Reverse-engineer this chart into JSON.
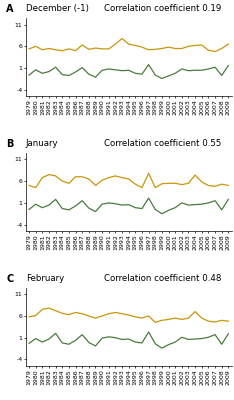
{
  "years_A": [
    1979,
    1980,
    1981,
    1982,
    1983,
    1984,
    1985,
    1986,
    1987,
    1988,
    1989,
    1990,
    1991,
    1992,
    1993,
    1994,
    1995,
    1996,
    1997,
    1998,
    1999,
    2000,
    2001,
    2002,
    2003,
    2004,
    2005,
    2006,
    2007,
    2008,
    2009
  ],
  "years_B": [
    1979,
    1980,
    1981,
    1982,
    1983,
    1984,
    1985,
    1986,
    1987,
    1988,
    1989,
    1990,
    1991,
    1992,
    1993,
    1994,
    1995,
    1996,
    1997,
    1998,
    1999,
    2000,
    2001,
    2002,
    2003,
    2004,
    2005,
    2006,
    2007,
    2008,
    2009
  ],
  "years_C": [
    1979,
    1980,
    1981,
    1982,
    1983,
    1984,
    1985,
    1986,
    1987,
    1988,
    1989,
    1990,
    1991,
    1992,
    1993,
    1994,
    1995,
    1996,
    1997,
    1998,
    1999,
    2000,
    2001,
    2002,
    2003,
    2004,
    2005,
    2006,
    2007,
    2008,
    2009
  ],
  "panels": [
    {
      "label": "A",
      "month": "December (-1)",
      "corr": "Correlation coefficient 0.19",
      "enso": [
        -0.6,
        0.6,
        -0.2,
        0.2,
        1.2,
        -0.5,
        -0.7,
        0.1,
        1.1,
        -0.4,
        -1.1,
        0.5,
        0.8,
        0.6,
        0.4,
        0.5,
        -0.2,
        -0.4,
        1.8,
        -0.6,
        -1.4,
        -0.8,
        -0.2,
        0.8,
        0.4,
        0.5,
        0.5,
        0.8,
        1.2,
        -0.7,
        1.6
      ],
      "cdd": [
        5.4,
        6.0,
        5.2,
        5.5,
        5.2,
        5.0,
        5.4,
        5.0,
        6.3,
        5.3,
        5.6,
        5.4,
        5.4,
        6.5,
        7.8,
        6.5,
        6.2,
        5.8,
        5.2,
        5.3,
        5.5,
        5.8,
        5.5,
        5.5,
        6.0,
        6.2,
        6.3,
        5.1,
        4.8,
        5.5,
        6.5
      ]
    },
    {
      "label": "B",
      "month": "January",
      "corr": "Correlation coefficient 0.55",
      "enso": [
        -0.5,
        0.7,
        -0.1,
        0.5,
        1.8,
        -0.3,
        -0.6,
        0.3,
        1.5,
        -0.2,
        -1.0,
        0.7,
        1.0,
        0.8,
        0.5,
        0.6,
        -0.1,
        -0.3,
        2.1,
        -0.5,
        -1.5,
        -0.7,
        -0.1,
        1.0,
        0.5,
        0.6,
        0.7,
        1.0,
        1.5,
        -0.6,
        1.8
      ],
      "cdd": [
        5.0,
        4.5,
        6.8,
        7.5,
        7.2,
        6.0,
        5.5,
        7.0,
        7.0,
        6.5,
        5.0,
        6.2,
        6.8,
        7.2,
        6.8,
        6.5,
        5.3,
        4.5,
        7.8,
        4.5,
        5.4,
        5.5,
        5.5,
        5.2,
        5.5,
        7.4,
        5.8,
        5.0,
        4.8,
        5.3,
        5.0
      ]
    },
    {
      "label": "C",
      "month": "February",
      "corr": "Correlation coefficient 0.48",
      "enso": [
        -0.3,
        0.8,
        0.0,
        0.7,
        2.0,
        -0.2,
        -0.5,
        0.4,
        1.7,
        -0.1,
        -0.9,
        0.9,
        1.2,
        1.0,
        0.6,
        0.7,
        0.0,
        -0.2,
        2.3,
        -0.4,
        -1.4,
        -0.6,
        0.0,
        1.1,
        0.6,
        0.7,
        0.8,
        1.1,
        1.7,
        -0.5,
        1.9
      ],
      "cdd": [
        5.8,
        6.1,
        7.5,
        7.8,
        7.2,
        6.6,
        6.3,
        6.8,
        6.5,
        6.0,
        5.5,
        6.0,
        6.5,
        6.8,
        6.5,
        6.2,
        5.8,
        5.5,
        6.0,
        4.5,
        5.0,
        5.2,
        5.5,
        5.2,
        5.5,
        7.0,
        5.5,
        4.8,
        4.6,
        5.0,
        4.8
      ]
    }
  ],
  "enso_color": "#4a7c3f",
  "cdd_color": "#c8960c",
  "yticks": [
    -4,
    1,
    6,
    11
  ],
  "ylim": [
    -5.5,
    12.5
  ],
  "background_color": "#ffffff",
  "label_fontsize": 7,
  "tick_fontsize": 4.5,
  "legend_fontsize": 5.5,
  "title_fontsize": 6.2,
  "line_width": 0.9
}
